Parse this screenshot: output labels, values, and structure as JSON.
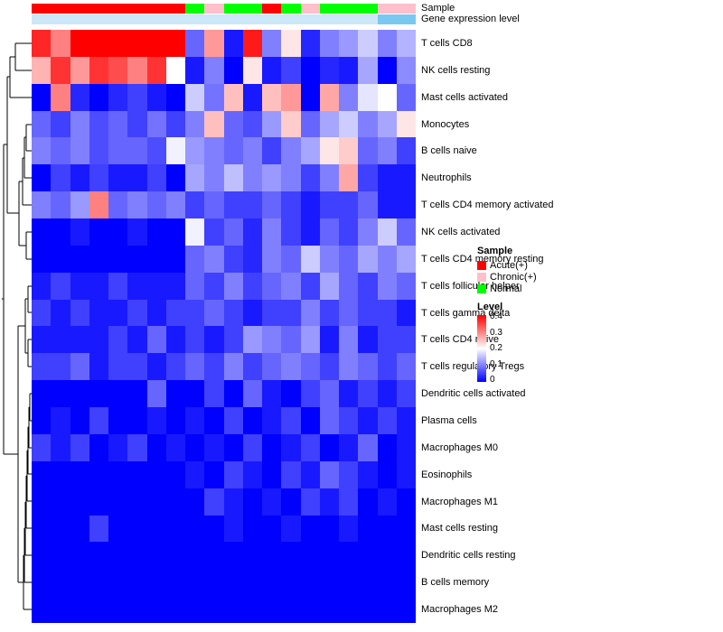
{
  "annotations": {
    "sample_label": "Sample",
    "gene_label": "Gene expression level"
  },
  "legend_sample": {
    "title": "Sample",
    "entries": [
      {
        "label": "Acute(+)",
        "color": "#FF0000"
      },
      {
        "label": "Chronic(+)",
        "color": "#FFC0CB"
      },
      {
        "label": "Normal",
        "color": "#00FF00"
      }
    ]
  },
  "legend_level": {
    "title": "Level",
    "ticks": [
      "0.4",
      "0.3",
      "0.2",
      "0.1",
      "0"
    ],
    "gradient": [
      "#FF0000",
      "#FFFFFF",
      "#0000FF"
    ]
  },
  "chart_data": {
    "type": "heatmap",
    "title": "",
    "value_range": [
      0,
      0.4
    ],
    "colormap": {
      "low": "#0000FF",
      "mid": "#FFFFFF",
      "high": "#FF0000",
      "midpoint": 0.2
    },
    "rows": [
      "T cells CD8",
      "NK cells resting",
      "Mast cells activated",
      "Monocytes",
      "B cells naive",
      "Neutrophils",
      "T cells CD4 memory activated",
      "NK cells activated",
      "T cells CD4 memory resting",
      "T cells follicular helper",
      "T cells gamma delta",
      "T cells CD4 naive",
      "T cells regulatory Tregs",
      "Dendritic cells activated",
      "Plasma cells",
      "Macrophages M0",
      "Eosinophils",
      "Macrophages M1",
      "Mast cells resting",
      "Dendritic cells resting",
      "B cells memory",
      "Macrophages M2"
    ],
    "n_cols": 20,
    "sample_colors": {
      "Acute(+)": "#FF0000",
      "Chronic(+)": "#FFC0CB",
      "Normal": "#00FF00"
    },
    "column_sample_groups": [
      "Acute(+)",
      "Acute(+)",
      "Acute(+)",
      "Acute(+)",
      "Acute(+)",
      "Acute(+)",
      "Acute(+)",
      "Acute(+)",
      "Normal",
      "Chronic(+)",
      "Normal",
      "Normal",
      "Acute(+)",
      "Normal",
      "Chronic(+)",
      "Normal",
      "Normal",
      "Normal",
      "Chronic(+)",
      "Chronic(+)"
    ],
    "gene_expression_colors": [
      "#CCE7F8",
      "#CCE7F8",
      "#CCE7F8",
      "#CCE7F8",
      "#CCE7F8",
      "#CCE7F8",
      "#CCE7F8",
      "#CCE7F8",
      "#CCE7F8",
      "#CCE7F8",
      "#CCE7F8",
      "#CCE7F8",
      "#CCE7F8",
      "#CCE7F8",
      "#CCE7F8",
      "#CCE7F8",
      "#CCE7F8",
      "#CCE7F8",
      "#79C8F0",
      "#79C8F0"
    ],
    "values": [
      [
        0.37,
        0.3,
        0.4,
        0.4,
        0.4,
        0.4,
        0.4,
        0.4,
        0.08,
        0.28,
        0.02,
        0.38,
        0.1,
        0.22,
        0.03,
        0.1,
        0.12,
        0.16,
        0.1,
        0.14
      ],
      [
        0.26,
        0.36,
        0.28,
        0.36,
        0.34,
        0.3,
        0.36,
        0.2,
        0.02,
        0.1,
        0.0,
        0.22,
        0.02,
        0.05,
        0.0,
        0.03,
        0.02,
        0.13,
        0.0,
        0.11
      ],
      [
        0.0,
        0.3,
        0.03,
        0.0,
        0.03,
        0.05,
        0.02,
        0.0,
        0.16,
        0.09,
        0.25,
        0.02,
        0.25,
        0.28,
        0.0,
        0.27,
        0.1,
        0.18,
        0.2,
        0.08
      ],
      [
        0.08,
        0.05,
        0.1,
        0.06,
        0.08,
        0.05,
        0.09,
        0.05,
        0.1,
        0.25,
        0.08,
        0.06,
        0.12,
        0.24,
        0.08,
        0.13,
        0.16,
        0.1,
        0.13,
        0.22
      ],
      [
        0.1,
        0.08,
        0.1,
        0.06,
        0.08,
        0.08,
        0.06,
        0.19,
        0.12,
        0.1,
        0.08,
        0.1,
        0.05,
        0.1,
        0.13,
        0.22,
        0.24,
        0.08,
        0.1,
        0.05
      ],
      [
        0.0,
        0.05,
        0.02,
        0.05,
        0.02,
        0.02,
        0.05,
        0.0,
        0.13,
        0.1,
        0.15,
        0.1,
        0.12,
        0.1,
        0.05,
        0.1,
        0.27,
        0.05,
        0.02,
        0.02
      ],
      [
        0.1,
        0.08,
        0.12,
        0.3,
        0.08,
        0.1,
        0.08,
        0.1,
        0.05,
        0.08,
        0.05,
        0.05,
        0.08,
        0.05,
        0.02,
        0.05,
        0.05,
        0.08,
        0.02,
        0.02
      ],
      [
        0.0,
        0.0,
        0.02,
        0.0,
        0.0,
        0.02,
        0.0,
        0.0,
        0.19,
        0.05,
        0.08,
        0.03,
        0.1,
        0.05,
        0.02,
        0.08,
        0.05,
        0.1,
        0.16,
        0.08
      ],
      [
        0.0,
        0.0,
        0.0,
        0.0,
        0.0,
        0.0,
        0.0,
        0.0,
        0.08,
        0.1,
        0.05,
        0.03,
        0.1,
        0.08,
        0.16,
        0.1,
        0.08,
        0.13,
        0.1,
        0.13
      ],
      [
        0.02,
        0.05,
        0.02,
        0.02,
        0.05,
        0.02,
        0.02,
        0.02,
        0.08,
        0.05,
        0.1,
        0.05,
        0.08,
        0.1,
        0.05,
        0.13,
        0.08,
        0.05,
        0.1,
        0.08
      ],
      [
        0.05,
        0.02,
        0.05,
        0.02,
        0.02,
        0.05,
        0.02,
        0.05,
        0.05,
        0.08,
        0.05,
        0.02,
        0.05,
        0.05,
        0.1,
        0.05,
        0.08,
        0.05,
        0.05,
        0.02
      ],
      [
        0.02,
        0.02,
        0.02,
        0.02,
        0.05,
        0.02,
        0.08,
        0.02,
        0.05,
        0.02,
        0.05,
        0.12,
        0.1,
        0.08,
        0.12,
        0.02,
        0.1,
        0.02,
        0.05,
        0.05
      ],
      [
        0.05,
        0.05,
        0.08,
        0.02,
        0.05,
        0.05,
        0.02,
        0.05,
        0.08,
        0.05,
        0.1,
        0.05,
        0.08,
        0.1,
        0.08,
        0.05,
        0.1,
        0.08,
        0.05,
        0.08
      ],
      [
        0.0,
        0.0,
        0.0,
        0.0,
        0.0,
        0.0,
        0.08,
        0.0,
        0.0,
        0.05,
        0.0,
        0.08,
        0.02,
        0.0,
        0.05,
        0.08,
        0.02,
        0.05,
        0.02,
        0.05
      ],
      [
        0.0,
        0.02,
        0.0,
        0.05,
        0.0,
        0.0,
        0.02,
        0.0,
        0.02,
        0.0,
        0.05,
        0.0,
        0.02,
        0.05,
        0.0,
        0.08,
        0.05,
        0.02,
        0.05,
        0.02
      ],
      [
        0.05,
        0.02,
        0.05,
        0.0,
        0.02,
        0.05,
        0.0,
        0.02,
        0.0,
        0.02,
        0.0,
        0.05,
        0.0,
        0.02,
        0.05,
        0.0,
        0.02,
        0.08,
        0.0,
        0.02
      ],
      [
        0.0,
        0.0,
        0.0,
        0.0,
        0.0,
        0.0,
        0.0,
        0.0,
        0.02,
        0.0,
        0.05,
        0.02,
        0.0,
        0.05,
        0.02,
        0.08,
        0.05,
        0.02,
        0.0,
        0.02
      ],
      [
        0.0,
        0.0,
        0.0,
        0.0,
        0.0,
        0.0,
        0.0,
        0.0,
        0.0,
        0.05,
        0.02,
        0.0,
        0.02,
        0.0,
        0.05,
        0.02,
        0.05,
        0.0,
        0.02,
        0.0
      ],
      [
        0.0,
        0.0,
        0.0,
        0.05,
        0.0,
        0.0,
        0.0,
        0.0,
        0.0,
        0.0,
        0.02,
        0.0,
        0.0,
        0.02,
        0.0,
        0.0,
        0.02,
        0.0,
        0.0,
        0.0
      ],
      [
        0.0,
        0.0,
        0.0,
        0.0,
        0.0,
        0.0,
        0.0,
        0.0,
        0.0,
        0.0,
        0.0,
        0.0,
        0.0,
        0.0,
        0.0,
        0.0,
        0.0,
        0.0,
        0.0,
        0.0
      ],
      [
        0.0,
        0.0,
        0.0,
        0.0,
        0.0,
        0.0,
        0.0,
        0.0,
        0.0,
        0.0,
        0.0,
        0.0,
        0.0,
        0.0,
        0.0,
        0.0,
        0.0,
        0.0,
        0.0,
        0.0
      ],
      [
        0.0,
        0.0,
        0.0,
        0.0,
        0.0,
        0.0,
        0.0,
        0.0,
        0.0,
        0.0,
        0.0,
        0.0,
        0.0,
        0.0,
        0.0,
        0.0,
        0.0,
        0.0,
        0.0,
        0.0
      ]
    ]
  }
}
